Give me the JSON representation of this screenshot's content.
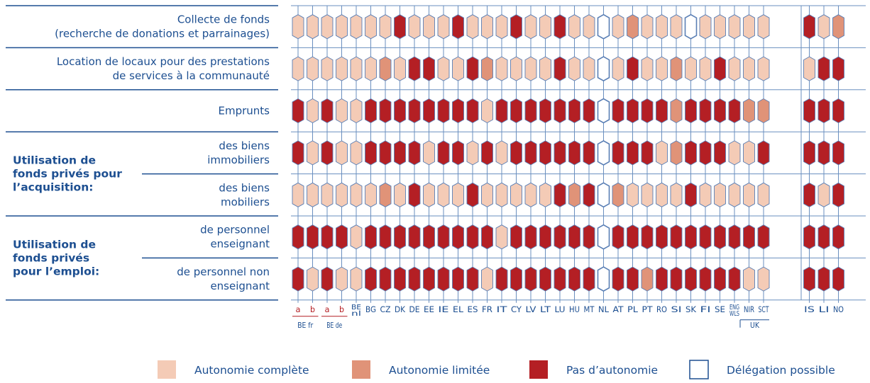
{
  "chart_data": {
    "type": "table",
    "rows": [
      {
        "label": "Collecte de fonds\n(recherche de donations et parrainages)",
        "group": null
      },
      {
        "label": "Location de locaux pour des prestations\nde services à la communauté",
        "group": null
      },
      {
        "label": "Emprunts",
        "group": null
      },
      {
        "label": "des biens\nimmobiliers",
        "group": "Utilisation de\nfonds privés pour\nl’acquisition:"
      },
      {
        "label": "des biens\nmobiliers",
        "group": "Utilisation de\nfonds privés pour\nl’acquisition:"
      },
      {
        "label": "de personnel\nenseignant",
        "group": "Utilisation de\nfonds privés\npour l’emploi:"
      },
      {
        "label": "de personnel non\nenseignant",
        "group": "Utilisation de\nfonds privés\npour l’emploi:"
      }
    ],
    "groups": [
      {
        "label": "Utilisation de\nfonds privés pour\nl’acquisition:"
      },
      {
        "label": "Utilisation de\nfonds privés\npour l’emploi:"
      }
    ],
    "columns": [
      {
        "label": "a",
        "sub": "BE fr"
      },
      {
        "label": "b",
        "sub": "BE fr"
      },
      {
        "label": "a",
        "sub": "BE de"
      },
      {
        "label": "b",
        "sub": "BE de"
      },
      {
        "label": "BE nl"
      },
      {
        "label": "BG"
      },
      {
        "label": "CZ"
      },
      {
        "label": "DK"
      },
      {
        "label": "DE"
      },
      {
        "label": "EE"
      },
      {
        "label": "IE"
      },
      {
        "label": "EL"
      },
      {
        "label": "ES"
      },
      {
        "label": "FR"
      },
      {
        "label": "IT"
      },
      {
        "label": "CY"
      },
      {
        "label": "LV"
      },
      {
        "label": "LT"
      },
      {
        "label": "LU"
      },
      {
        "label": "HU"
      },
      {
        "label": "MT"
      },
      {
        "label": "NL"
      },
      {
        "label": "AT"
      },
      {
        "label": "PL"
      },
      {
        "label": "PT"
      },
      {
        "label": "RO"
      },
      {
        "label": "SI"
      },
      {
        "label": "SK"
      },
      {
        "label": "FI"
      },
      {
        "label": "SE"
      },
      {
        "label": "ENG WLS",
        "sub": "UK"
      },
      {
        "label": "NIR",
        "sub": "UK"
      },
      {
        "label": "SCT",
        "sub": "UK"
      },
      {
        "label": "IS"
      },
      {
        "label": "LI"
      },
      {
        "label": "NO"
      }
    ],
    "subgroup_labels": [
      "BE fr",
      "BE de",
      "UK"
    ],
    "status_codes": {
      "F": "Autonomie complète",
      "L": "Autonomie limitée",
      "N": "Pas d’autonomie",
      "D": "Délégation possible"
    },
    "values": [
      "FFFFFFFNFFFNFFFNFFNFFDFLFFFDFFFFFNFL",
      "FFFFFFLFNNFFNLFFFFNFFDFNFFLFFNFFFFNN",
      "NFNFFNNNNNNNNFNNNNNNNDNNNNLNNNNLLNNN",
      "NFNFFNNNNFNNFNFNNNNNNDNNNFLNNNFFNNNN",
      "FFFFFFLFNFFFNFFFFFNLNDLFFFFNFFFFFNFN",
      "NNNNFNNNNNNNNNFNNNNNNDNNNNNNNNNNNNNN",
      "NFNFFNNNNNNNNFNNNNNNNDNNLNNNNNNFFNNN"
    ]
  },
  "legend": [
    {
      "code": "F",
      "label": "Autonomie complète",
      "color": "#f4cbb6"
    },
    {
      "code": "L",
      "label": "Autonomie limitée",
      "color": "#e09378"
    },
    {
      "code": "N",
      "label": "Pas d’autonomie",
      "color": "#b41f24"
    },
    {
      "code": "D",
      "label": "Délégation possible",
      "color": "#ffffff"
    }
  ],
  "colors": {
    "text": "#1d4f91",
    "grid": "#6a8fbf",
    "outline": "#5a7fb5",
    "rule": "#1d4f91",
    "subgroup": "#b41f24"
  }
}
